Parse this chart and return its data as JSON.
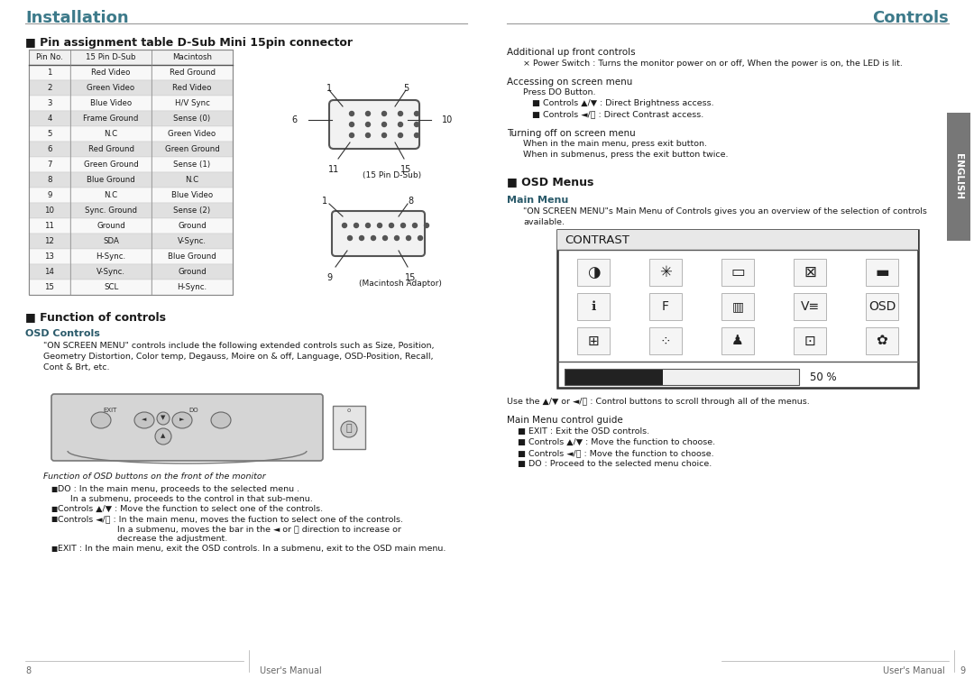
{
  "page_bg": "#ffffff",
  "left_title": "Installation",
  "right_title": "Controls",
  "title_color": "#3d7a8a",
  "title_fontsize": 13,
  "body_color": "#1a1a1a",
  "body_fontsize": 7.5,
  "small_fontsize": 6.8,
  "pin_section_title": "■ Pin assignment table D-Sub Mini 15pin connector",
  "pin_table_headers": [
    "Pin No.",
    "15 Pin D-Sub",
    "Macintosh"
  ],
  "pin_table_rows": [
    [
      "1",
      "Red Video",
      "Red Ground"
    ],
    [
      "2",
      "Green Video",
      "Red Video"
    ],
    [
      "3",
      "Blue Video",
      "H/V Sync"
    ],
    [
      "4",
      "Frame Ground",
      "Sense (0)"
    ],
    [
      "5",
      "N.C",
      "Green Video"
    ],
    [
      "6",
      "Red Ground",
      "Green Ground"
    ],
    [
      "7",
      "Green Ground",
      "Sense (1)"
    ],
    [
      "8",
      "Blue Ground",
      "N.C"
    ],
    [
      "9",
      "N.C",
      "Blue Video"
    ],
    [
      "10",
      "Sync. Ground",
      "Sense (2)"
    ],
    [
      "11",
      "Ground",
      "Ground"
    ],
    [
      "12",
      "SDA",
      "V-Sync."
    ],
    [
      "13",
      "H-Sync.",
      "Blue Ground"
    ],
    [
      "14",
      "V-Sync.",
      "Ground"
    ],
    [
      "15",
      "SCL",
      "H-Sync."
    ]
  ],
  "table_alt_row_color": "#e0e0e0",
  "table_header_bg": "#cccccc",
  "function_title": "■ Function of controls",
  "osd_controls_title": "OSD Controls",
  "osd_controls_lines": [
    "\"ON SCREEN MENU\" controls include the following extended controls such as Size, Position,",
    "Geometry Distortion, Color temp, Degauss, Moire on & off, Language, OSD-Position, Recall,",
    "Cont & Brt, etc."
  ],
  "osd_buttons_label": "Function of OSD buttons on the front of the monitor",
  "osd_bullet1": "DO : In the main menu, proceeds to the selected menu .",
  "osd_bullet1b": "In a submenu, proceeds to the control in that sub-menu.",
  "osd_bullet2": "Controls ▲/▼ : Move the function to select one of the controls.",
  "osd_bullet3": "Controls ◄/ⓘ : In the main menu, moves the fuction to select one of the controls.",
  "osd_bullet3b": "In a submenu, moves the bar in the ◄ or ⓘ direction to increase or",
  "osd_bullet3c": "decrease the adjustment.",
  "osd_bullet4": "EXIT : In the main menu, exit the OSD controls. In a submenu, exit to the OSD main menu.",
  "right_additional_title": "Additional up front controls",
  "right_additional_text": "× Power Switch : Turns the monitor power on or off, When the power is on, the LED is lit.",
  "accessing_title": "Accessing on screen menu",
  "accessing_indent": "Press DO Button.",
  "accessing_b1": "■ Controls ▲/▼ : Direct Brightness access.",
  "accessing_b2": "■ Controls ◄/ⓘ : Direct Contrast access.",
  "turning_off_title": "Turning off on screen menu",
  "turning_off_1": "When in the main menu, press exit button.",
  "turning_off_2": "When in submenus, press the exit button twice.",
  "osd_menus_title": "■ OSD Menus",
  "main_menu_title": "Main Menu",
  "main_menu_line1": "\"ON SCREEN MENU\"s Main Menu of Controls gives you an overview of the selection of controls",
  "main_menu_line2": "available.",
  "contrast_label": "CONTRAST",
  "contrast_value": "50 %",
  "use_controls_text": "Use the ▲/▼ or ◄/ⓘ : Control buttons to scroll through all of the menus.",
  "main_menu_guide_title": "Main Menu control guide",
  "guide_b1": "■ EXIT : Exit the OSD controls.",
  "guide_b2": "■ Controls ▲/▼ : Move the function to choose.",
  "guide_b3": "■ Controls ◄/ⓘ : Move the function to choose.",
  "guide_b4": "■ DO : Proceed to the selected menu choice.",
  "english_tab_color": "#777777",
  "page_number_left": "8",
  "page_number_right": "9",
  "footer_text": "User's Manual"
}
